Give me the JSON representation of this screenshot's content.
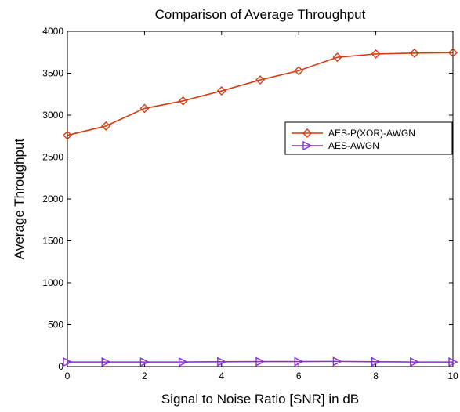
{
  "chart_data": {
    "type": "line",
    "title": "Comparison of Average Throughput",
    "xlabel": "Signal to Noise Ratio [SNR] in dB",
    "ylabel": "Average Throughput",
    "xlim": [
      0,
      10
    ],
    "ylim": [
      0,
      4000
    ],
    "xticks": [
      "0",
      "2",
      "4",
      "6",
      "8",
      "10"
    ],
    "yticks": [
      "0",
      "500",
      "1000",
      "1500",
      "2000",
      "2500",
      "3000",
      "3500",
      "4000"
    ],
    "grid": false,
    "legend_position": "right",
    "x": [
      0,
      1,
      2,
      3,
      4,
      5,
      6,
      7,
      8,
      9,
      10
    ],
    "series": [
      {
        "name": "AES-P(XOR)-AWGN",
        "color": "#d43b12",
        "marker": "diamond",
        "values": [
          2760,
          2870,
          3080,
          3170,
          3290,
          3420,
          3530,
          3690,
          3730,
          3740,
          3745
        ]
      },
      {
        "name": "AES-AWGN",
        "color": "#8a2be2",
        "marker": "triangle-right",
        "values": [
          55,
          55,
          55,
          55,
          58,
          60,
          60,
          62,
          58,
          55,
          55
        ]
      }
    ]
  }
}
